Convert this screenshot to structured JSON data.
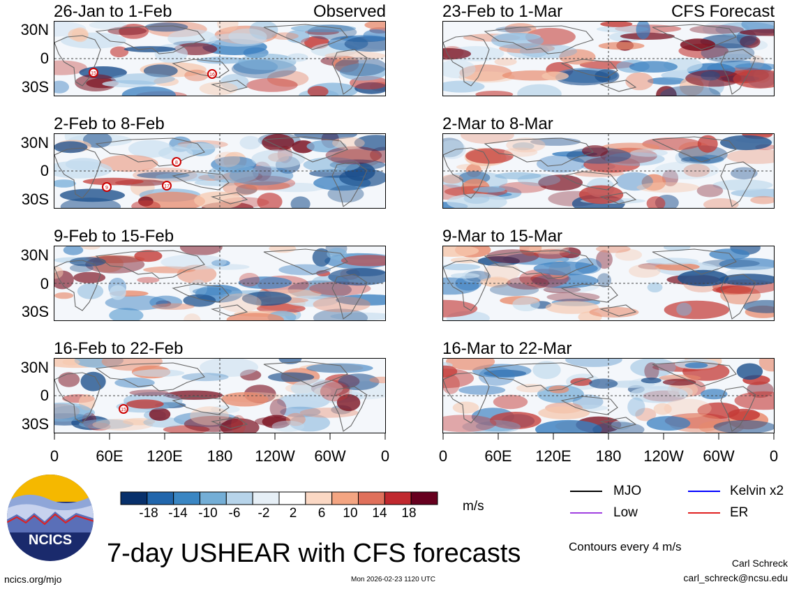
{
  "left_column_header": "Observed",
  "right_column_header": "CFS Forecast",
  "panels": {
    "obs": [
      "26-Jan to 1-Feb",
      "2-Feb to 8-Feb",
      "9-Feb to 15-Feb",
      "16-Feb to 22-Feb"
    ],
    "fcst": [
      "23-Feb to 1-Mar",
      "2-Mar to 8-Mar",
      "9-Mar to 15-Mar",
      "16-Mar to 22-Mar"
    ]
  },
  "y_axis_labels": [
    "30N",
    "0",
    "30S"
  ],
  "x_axis_labels": [
    "0",
    "60E",
    "120E",
    "180",
    "120W",
    "60W",
    "0"
  ],
  "colorbar": {
    "labels": [
      "-18",
      "-14",
      "-10",
      "-6",
      "-2",
      "2",
      "6",
      "10",
      "14",
      "18"
    ],
    "colors": [
      "#08306b",
      "#2166ac",
      "#3a86c3",
      "#74aed6",
      "#b7d4ea",
      "#e6eff6",
      "#ffffff",
      "#fbd8c4",
      "#f4a582",
      "#e0705b",
      "#c0282e",
      "#67001f"
    ],
    "unit": "m/s"
  },
  "legend": {
    "mjo": "MJO",
    "kelvin": "Kelvin x2",
    "low": "Low",
    "er": "ER",
    "colors": {
      "mjo": "#000000",
      "kelvin": "#0000ff",
      "low": "#a040e0",
      "er": "#e02020"
    }
  },
  "title": "7-day USHEAR with CFS forecasts",
  "contour_note": "Contours every 4 m/s",
  "logo_text": "NCICS",
  "footer": {
    "url": "ncics.org/mjo",
    "timestamp": "Mon 2026-02-23 1120 UTC",
    "author": "Carl Schreck",
    "email": "carl_schreck@ncsu.edu"
  },
  "storm_markers": [
    {
      "panel": "obs-1",
      "label": "15"
    },
    {
      "panel": "obs-1",
      "label": "16"
    },
    {
      "panel": "obs-2",
      "label": "8"
    },
    {
      "panel": "obs-2",
      "label": "9"
    },
    {
      "panel": "obs-2",
      "label": "17"
    },
    {
      "panel": "obs-4",
      "label": "15"
    }
  ]
}
